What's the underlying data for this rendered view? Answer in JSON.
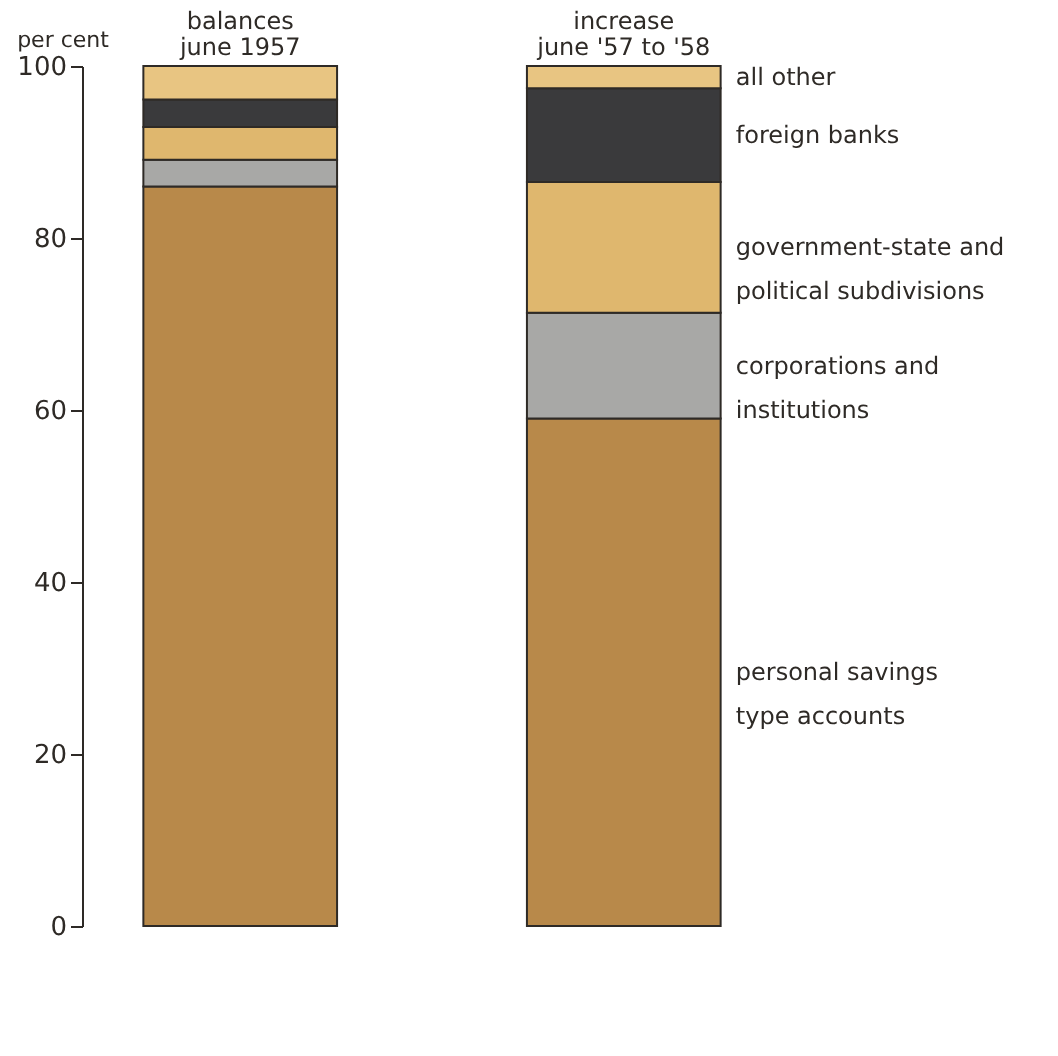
{
  "chart_data": {
    "type": "bar",
    "stacked": true,
    "ylabel": "per cent",
    "categories": [
      "balances\njune 1957",
      "increase\njune '57 to '58"
    ],
    "series": [
      {
        "name": "personal savings\ntype accounts",
        "color": "#b8894a",
        "values": [
          86.0,
          59.0
        ]
      },
      {
        "name": "corporations and\ninstitutions",
        "color": "#a8a8a6",
        "values": [
          3.1,
          12.3
        ]
      },
      {
        "name": "government-state and\npolitical subdivisions",
        "color": "#dfb76e",
        "values": [
          3.8,
          15.2
        ]
      },
      {
        "name": "foreign banks",
        "color": "#3a3a3c",
        "values": [
          3.2,
          10.9
        ]
      },
      {
        "name": "all other",
        "color": "#e8c582",
        "values": [
          3.9,
          2.6
        ]
      }
    ],
    "ylim": [
      0,
      100
    ],
    "yticks": [
      0,
      20,
      40,
      60,
      80,
      100
    ],
    "grid": false
  }
}
